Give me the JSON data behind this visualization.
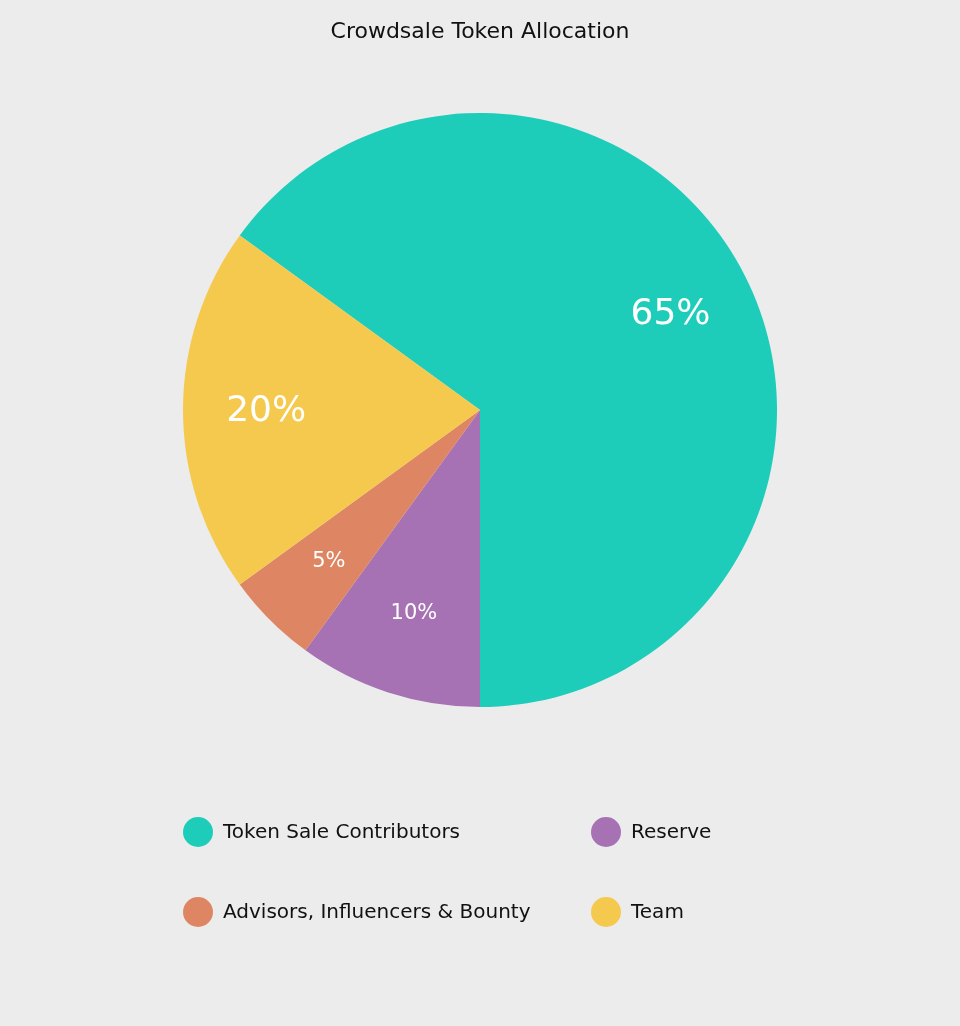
{
  "chart_data": {
    "type": "pie",
    "title": "Crowdsale Token Allocation",
    "categories": [
      "Token Sale Contributors",
      "Reserve",
      "Advisors, Influencers & Bounty",
      "Team"
    ],
    "values": [
      65,
      10,
      5,
      20
    ],
    "colors": [
      "#1ecdb9",
      "#a672b4",
      "#de8663",
      "#f4c94e"
    ],
    "value_labels": [
      "65%",
      "10%",
      "5%",
      "20%"
    ],
    "legend": "bottom"
  }
}
